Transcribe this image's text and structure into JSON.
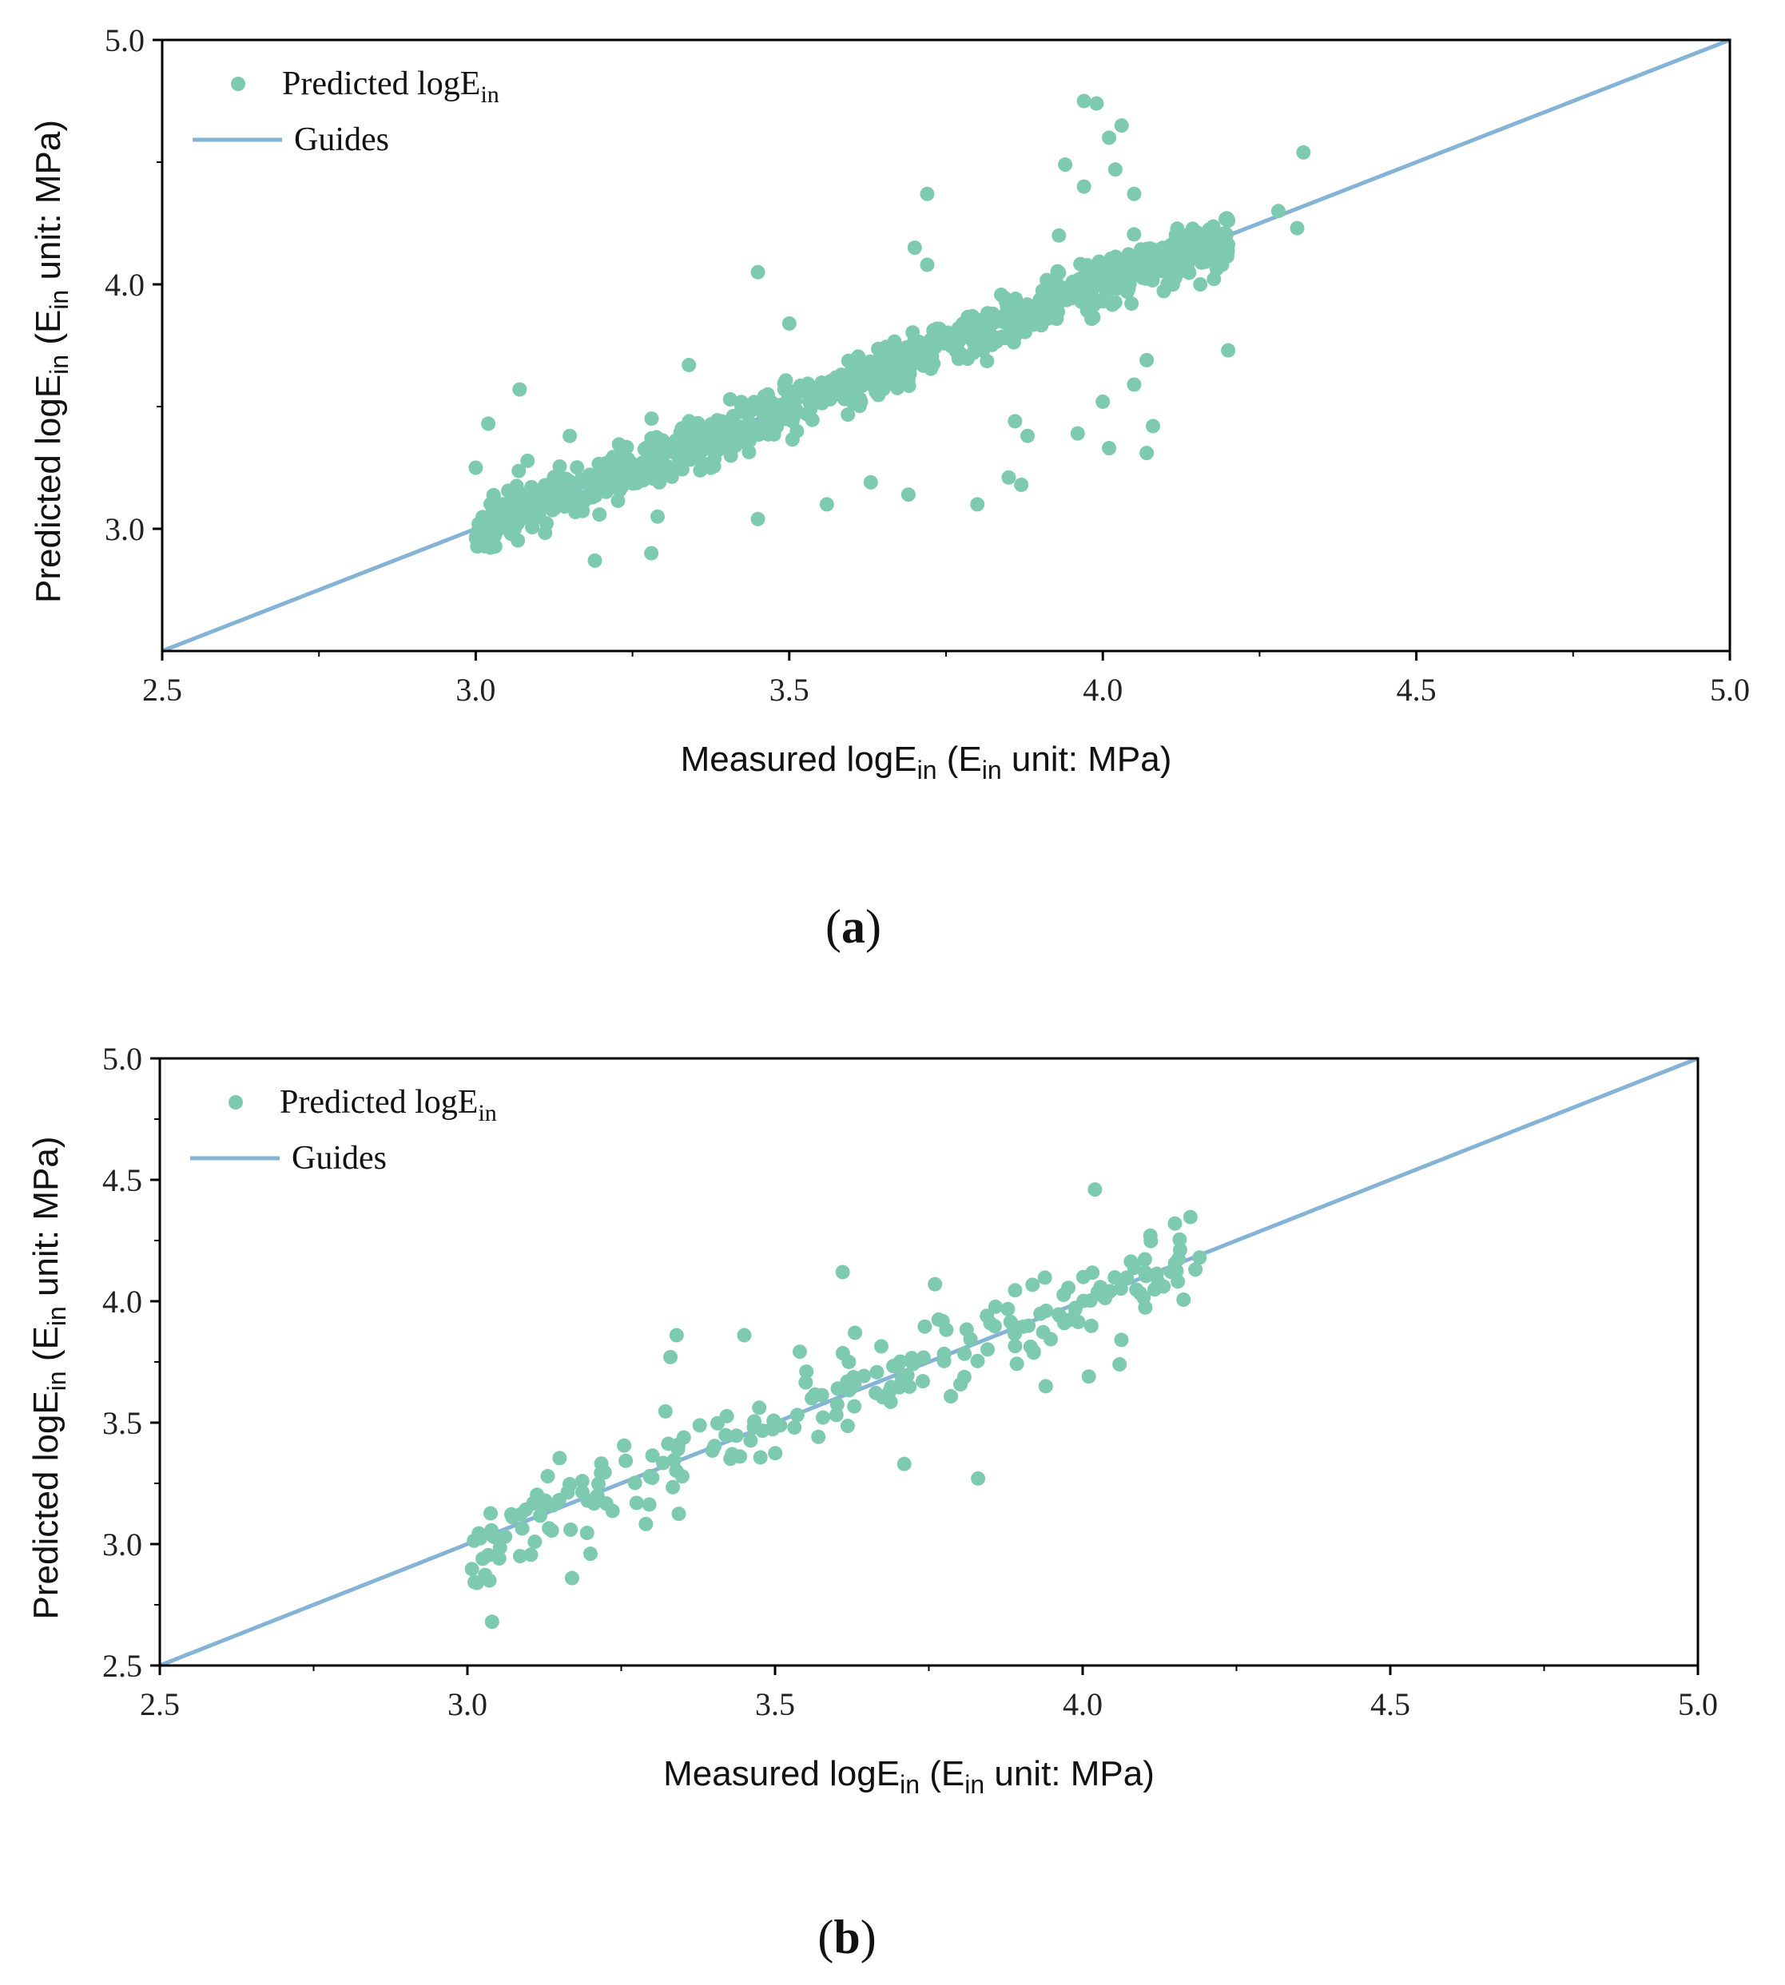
{
  "colors": {
    "points": "#7dcab0",
    "guide": "#85b3d6",
    "axis": "#000000"
  },
  "chart_data": [
    {
      "type": "scatter",
      "panel_label": "(a)",
      "panel_letter": "a",
      "xlabel": "Measured logE_in (E_in unit: MPa)",
      "ylabel": "Predicted logE_in (E_in unit: MPa)",
      "xlabel_parts": [
        "Measured logE",
        "in",
        " (E",
        "in",
        " unit: MPa)"
      ],
      "ylabel_parts": [
        "Predicted logE",
        "in",
        " (E",
        "in",
        " unit: MPa)"
      ],
      "xlim": [
        2.5,
        5.0
      ],
      "ylim": [
        2.5,
        5.0
      ],
      "xticks": [
        "2.5",
        "3.0",
        "3.5",
        "4.0",
        "4.5",
        "5.0"
      ],
      "yticks": [
        "3.0",
        "4.0",
        "5.0"
      ],
      "legend": {
        "points_label": "Predicted logE",
        "points_sub": "in",
        "guide_label": "Guides",
        "position": "top-left"
      },
      "guide": [
        [
          2.5,
          2.5
        ],
        [
          5.0,
          5.0
        ]
      ],
      "series": [
        {
          "name": "Predicted logE_in",
          "n_points_approx": 900,
          "x_range": [
            3.0,
            4.2
          ],
          "noise_sd": 0.055,
          "seed": 11
        }
      ],
      "outliers": [
        [
          3.07,
          3.57
        ],
        [
          3.02,
          3.43
        ],
        [
          3.0,
          3.25
        ],
        [
          3.15,
          3.38
        ],
        [
          3.29,
          3.05
        ],
        [
          3.28,
          2.9
        ],
        [
          3.19,
          2.87
        ],
        [
          3.34,
          3.67
        ],
        [
          3.45,
          4.05
        ],
        [
          3.45,
          3.04
        ],
        [
          3.5,
          3.84
        ],
        [
          3.56,
          3.1
        ],
        [
          3.63,
          3.19
        ],
        [
          3.69,
          3.14
        ],
        [
          3.72,
          4.37
        ],
        [
          3.7,
          4.15
        ],
        [
          3.72,
          4.08
        ],
        [
          3.8,
          3.1
        ],
        [
          3.85,
          3.21
        ],
        [
          3.87,
          3.18
        ],
        [
          3.88,
          3.38
        ],
        [
          3.86,
          3.44
        ],
        [
          3.94,
          4.49
        ],
        [
          3.97,
          4.75
        ],
        [
          3.99,
          4.74
        ],
        [
          4.01,
          4.6
        ],
        [
          4.03,
          4.65
        ],
        [
          4.02,
          4.47
        ],
        [
          3.97,
          4.4
        ],
        [
          4.05,
          4.37
        ],
        [
          3.96,
          3.39
        ],
        [
          4.01,
          3.33
        ],
        [
          4.0,
          3.52
        ],
        [
          4.05,
          3.59
        ],
        [
          4.07,
          3.31
        ],
        [
          4.08,
          3.42
        ],
        [
          4.07,
          3.69
        ],
        [
          4.2,
          3.73
        ],
        [
          4.28,
          4.3
        ],
        [
          4.32,
          4.54
        ],
        [
          4.31,
          4.23
        ],
        [
          3.93,
          4.2
        ]
      ]
    },
    {
      "type": "scatter",
      "panel_label": "(b)",
      "panel_letter": "b",
      "xlabel": "Measured logE_in (E_in unit: MPa)",
      "ylabel": "Predicted logE_in (E_in unit: MPa)",
      "xlabel_parts": [
        "Measured logE",
        "in",
        " (E",
        "in",
        " unit: MPa)"
      ],
      "ylabel_parts": [
        "Predicted logE",
        "in",
        " (E",
        "in",
        " unit: MPa)"
      ],
      "xlim": [
        2.5,
        5.0
      ],
      "ylim": [
        2.5,
        5.0
      ],
      "xticks": [
        "2.5",
        "3.0",
        "3.5",
        "4.0",
        "4.5",
        "5.0"
      ],
      "yticks": [
        "2.5",
        "3.0",
        "3.5",
        "4.0",
        "4.5",
        "5.0"
      ],
      "legend": {
        "points_label": "Predicted logE",
        "points_sub": "in",
        "guide_label": "Guides",
        "position": "top-left"
      },
      "guide": [
        [
          2.5,
          2.5
        ],
        [
          5.0,
          5.0
        ]
      ],
      "series": [
        {
          "name": "Predicted logE_in",
          "n_points_approx": 220,
          "x_range": [
            3.0,
            4.2
          ],
          "noise_sd": 0.085,
          "seed": 29
        }
      ],
      "outliers": [
        [
          3.04,
          2.68
        ],
        [
          3.17,
          2.86
        ],
        [
          3.2,
          2.96
        ],
        [
          3.33,
          3.77
        ],
        [
          3.34,
          3.86
        ],
        [
          3.45,
          3.86
        ],
        [
          3.61,
          4.12
        ],
        [
          3.63,
          3.87
        ],
        [
          3.71,
          3.33
        ],
        [
          3.76,
          4.07
        ],
        [
          3.83,
          3.27
        ],
        [
          3.94,
          3.65
        ],
        [
          4.02,
          4.46
        ],
        [
          4.11,
          4.27
        ],
        [
          4.15,
          4.32
        ],
        [
          4.19,
          4.18
        ],
        [
          4.06,
          3.74
        ],
        [
          4.01,
          3.69
        ]
      ]
    }
  ]
}
